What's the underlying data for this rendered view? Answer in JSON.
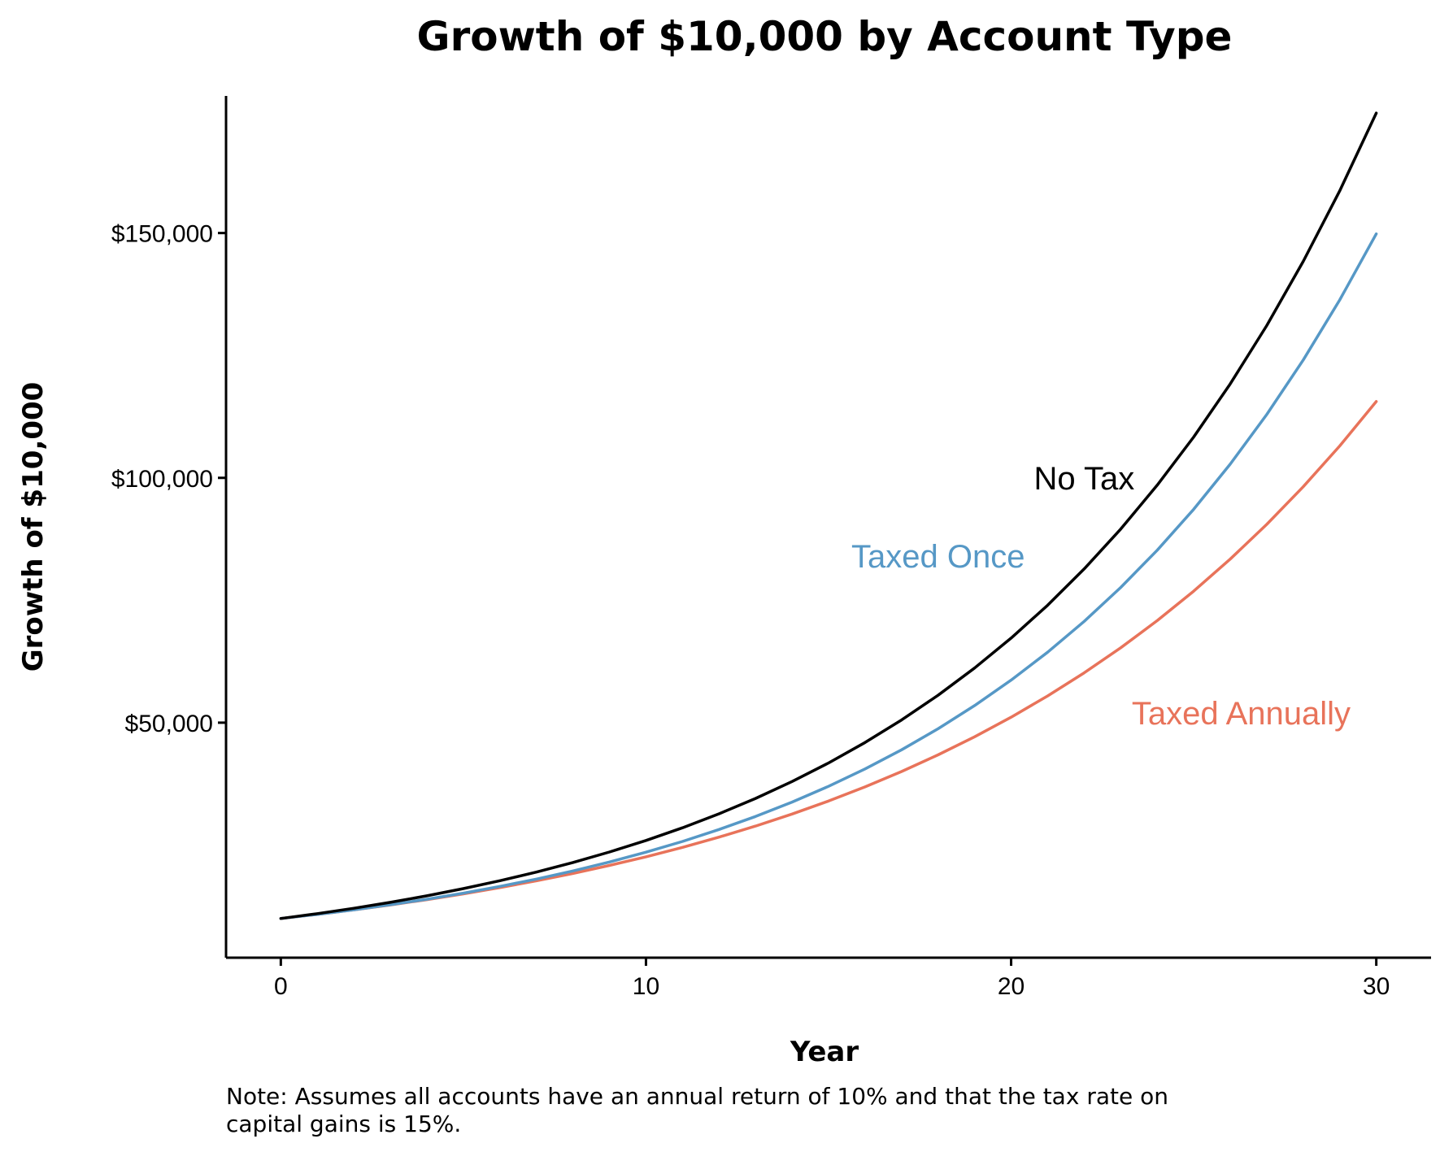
{
  "chart_data": {
    "type": "line",
    "title": "Growth of $10,000 by Account Type",
    "xlabel": "Year",
    "ylabel": "Growth of $10,000",
    "note_lines": [
      "Note: Assumes all accounts have an annual return of 10% and that the tax rate on",
      "capital gains is 15%."
    ],
    "xlim": [
      -1.5,
      31.5
    ],
    "ylim": [
      2000,
      178000
    ],
    "x_ticks": [
      {
        "value": 0,
        "label": "0"
      },
      {
        "value": 10,
        "label": "10"
      },
      {
        "value": 20,
        "label": "20"
      },
      {
        "value": 30,
        "label": "30"
      }
    ],
    "y_ticks": [
      {
        "value": 50000,
        "label": "$50,000"
      },
      {
        "value": 100000,
        "label": "$100,000"
      },
      {
        "value": 150000,
        "label": "$150,000"
      }
    ],
    "grid": false,
    "legend": "none (direct labels)",
    "x": [
      0,
      1,
      2,
      3,
      4,
      5,
      6,
      7,
      8,
      9,
      10,
      11,
      12,
      13,
      14,
      15,
      16,
      17,
      18,
      19,
      20,
      21,
      22,
      23,
      24,
      25,
      26,
      27,
      28,
      29,
      30
    ],
    "series": [
      {
        "name": "No Tax",
        "color": "#000000",
        "label_at": {
          "x": 22,
          "y": 100000
        },
        "values": [
          10000,
          11000,
          12100,
          13310,
          14641,
          16105,
          17716,
          19487,
          21436,
          23579,
          25937,
          28531,
          31384,
          34523,
          37975,
          41772,
          45950,
          50545,
          55599,
          61159,
          67275,
          74002,
          81403,
          89543,
          98497,
          108347,
          119182,
          131100,
          144210,
          158631,
          174494
        ]
      },
      {
        "name": "Taxed Once",
        "color": "#5698c6",
        "label_at": {
          "x": 18,
          "y": 84000
        },
        "values": [
          10000,
          10850,
          11785,
          12814,
          13945,
          15189,
          16558,
          18064,
          19720,
          21542,
          23546,
          25751,
          28176,
          30844,
          33779,
          37007,
          40558,
          44463,
          48760,
          53486,
          58683,
          64402,
          70692,
          77611,
          85222,
          93594,
          102804,
          112934,
          124077,
          136334,
          149818
        ]
      },
      {
        "name": "Taxed Annually",
        "color": "#e8735a",
        "label_at": {
          "x": 26.3,
          "y": 52000
        },
        "values": [
          10000,
          10850,
          11772,
          12773,
          13859,
          15037,
          16315,
          17701,
          19206,
          20839,
          22610,
          24532,
          26617,
          28879,
          31334,
          33997,
          36887,
          40023,
          43425,
          47116,
          51120,
          55466,
          60180,
          65296,
          70846,
          76868,
          83401,
          90490,
          98183,
          106528,
          115583
        ]
      }
    ]
  }
}
